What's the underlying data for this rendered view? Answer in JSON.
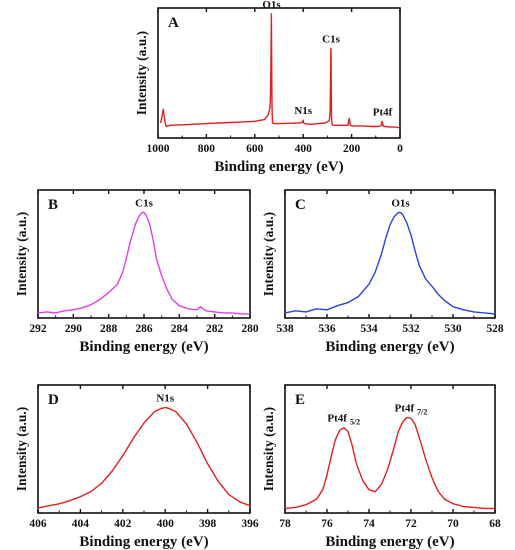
{
  "chart_data": [
    {
      "panel": "A",
      "type": "line",
      "color": "#e02020",
      "xlabel": "Binding energy (eV)",
      "ylabel": "Intensity (a.u.)",
      "xlim": [
        1000,
        0
      ],
      "x_ticks": [
        1000,
        800,
        600,
        400,
        200,
        0
      ],
      "annotations": [
        {
          "text": "O1s",
          "x": 531
        },
        {
          "text": "C1s",
          "x": 285
        },
        {
          "text": "N1s",
          "x": 400
        },
        {
          "text": "Pt4f",
          "x": 72
        }
      ],
      "series": [
        {
          "x": [
            990,
            985,
            978,
            972,
            966,
            950,
            900,
            850,
            800,
            750,
            700,
            650,
            600,
            560,
            545,
            540,
            537,
            535,
            533,
            531.5,
            530.5,
            529,
            527,
            525,
            520,
            500,
            460,
            420,
            405,
            401,
            400,
            399,
            396,
            380,
            360,
            340,
            310,
            292,
            289,
            287,
            286,
            285,
            284,
            283,
            281,
            278,
            260,
            240,
            215,
            210,
            205,
            200,
            180,
            150,
            120,
            100,
            90,
            80,
            76,
            74.5,
            73,
            72,
            70,
            66,
            60,
            40,
            20,
            8,
            0
          ],
          "y": [
            0.05,
            0.09,
            0.17,
            0.07,
            0.02,
            0.03,
            0.035,
            0.04,
            0.045,
            0.05,
            0.055,
            0.06,
            0.065,
            0.08,
            0.12,
            0.16,
            0.18,
            0.3,
            0.62,
            1.0,
            0.7,
            0.2,
            0.05,
            0.05,
            0.045,
            0.045,
            0.048,
            0.05,
            0.055,
            0.07,
            0.075,
            0.06,
            0.045,
            0.04,
            0.04,
            0.045,
            0.05,
            0.07,
            0.15,
            0.4,
            0.7,
            0.68,
            0.3,
            0.1,
            0.04,
            0.03,
            0.03,
            0.03,
            0.03,
            0.09,
            0.03,
            0.025,
            0.025,
            0.025,
            0.02,
            0.02,
            0.02,
            0.025,
            0.04,
            0.065,
            0.04,
            0.055,
            0.025,
            0.02,
            0.02,
            0.015,
            0.015,
            0.01,
            0.01
          ]
        }
      ]
    },
    {
      "panel": "B",
      "type": "line",
      "color": "#e040e0",
      "xlabel": "Binding energy (eV)",
      "ylabel": "Intensity (a.u.)",
      "xlim": [
        292,
        280
      ],
      "x_ticks": [
        292,
        290,
        288,
        286,
        284,
        282,
        280
      ],
      "annotations": [
        {
          "text": "C1s",
          "x": 286.0
        }
      ],
      "series": [
        {
          "x": [
            292,
            291.5,
            291,
            290.5,
            290,
            289.5,
            289,
            288.5,
            288,
            287.5,
            287.2,
            287,
            286.8,
            286.5,
            286.3,
            286.1,
            286.0,
            285.9,
            285.7,
            285.5,
            285.3,
            285,
            284.7,
            284.4,
            284,
            283.5,
            283,
            282.8,
            282.5,
            282,
            281.5,
            281,
            280.5,
            280
          ],
          "y": [
            0.02,
            0.03,
            0.02,
            0.04,
            0.05,
            0.07,
            0.1,
            0.15,
            0.22,
            0.3,
            0.42,
            0.55,
            0.7,
            0.88,
            0.96,
            1.0,
            1.0,
            0.98,
            0.9,
            0.75,
            0.55,
            0.38,
            0.25,
            0.15,
            0.09,
            0.06,
            0.05,
            0.08,
            0.04,
            0.03,
            0.02,
            0.02,
            0.01,
            0.01
          ]
        }
      ]
    },
    {
      "panel": "C",
      "type": "line",
      "color": "#2a40e8",
      "xlabel": "Binding energy (eV)",
      "ylabel": "Intensity (a.u.)",
      "xlim": [
        538,
        528
      ],
      "x_ticks": [
        538,
        536,
        534,
        532,
        530,
        528
      ],
      "annotations": [
        {
          "text": "O1s",
          "x": 532.5
        }
      ],
      "series": [
        {
          "x": [
            538,
            537.5,
            537,
            536.5,
            536,
            535.5,
            535,
            534.5,
            534,
            533.7,
            533.4,
            533.2,
            533,
            532.8,
            532.6,
            532.5,
            532.4,
            532.2,
            532,
            531.8,
            531.6,
            531.3,
            531,
            530.7,
            530.4,
            530,
            529.5,
            529,
            528.5,
            528
          ],
          "y": [
            0.02,
            0.04,
            0.03,
            0.06,
            0.05,
            0.09,
            0.12,
            0.18,
            0.3,
            0.42,
            0.6,
            0.75,
            0.88,
            0.96,
            1.0,
            1.0,
            0.98,
            0.9,
            0.78,
            0.62,
            0.48,
            0.35,
            0.28,
            0.2,
            0.14,
            0.08,
            0.05,
            0.03,
            0.02,
            0.01
          ]
        }
      ]
    },
    {
      "panel": "D",
      "type": "line",
      "color": "#e02020",
      "xlabel": "Binding energy (eV)",
      "ylabel": "Intensity (a.u.)",
      "xlim": [
        406,
        396
      ],
      "x_ticks": [
        406,
        404,
        402,
        400,
        398,
        396
      ],
      "annotations": [
        {
          "text": "N1s",
          "x": 400.0
        }
      ],
      "series": [
        {
          "x": [
            406,
            405.5,
            405,
            404.5,
            404,
            403.5,
            403,
            402.5,
            402,
            401.5,
            401,
            400.5,
            400.2,
            400,
            399.8,
            399.5,
            399,
            398.5,
            398,
            397.5,
            397,
            396.5,
            396
          ],
          "y": [
            0.02,
            0.04,
            0.06,
            0.09,
            0.13,
            0.18,
            0.26,
            0.38,
            0.53,
            0.7,
            0.85,
            0.96,
            0.99,
            1.0,
            0.99,
            0.96,
            0.84,
            0.66,
            0.45,
            0.28,
            0.15,
            0.08,
            0.04
          ]
        }
      ]
    },
    {
      "panel": "E",
      "type": "line",
      "color": "#e02020",
      "xlabel": "Binding energy (eV)",
      "ylabel": "Intensity (a.u.)",
      "xlim": [
        78,
        68
      ],
      "x_ticks": [
        78,
        76,
        74,
        72,
        70,
        68
      ],
      "annotations": [
        {
          "text": "Pt4f",
          "sub": "5/2",
          "x": 75.2
        },
        {
          "text": "Pt4f",
          "sub": "7/2",
          "x": 72.0
        }
      ],
      "series": [
        {
          "x": [
            78,
            77.5,
            77,
            76.5,
            76.2,
            76,
            75.8,
            75.6,
            75.4,
            75.2,
            75.0,
            74.8,
            74.6,
            74.3,
            74,
            73.7,
            73.4,
            73.1,
            72.8,
            72.6,
            72.4,
            72.2,
            72.0,
            71.8,
            71.6,
            71.3,
            71,
            70.7,
            70.4,
            70,
            69.5,
            69,
            68.5,
            68
          ],
          "y": [
            0.02,
            0.03,
            0.06,
            0.12,
            0.22,
            0.38,
            0.58,
            0.76,
            0.86,
            0.89,
            0.85,
            0.7,
            0.5,
            0.32,
            0.22,
            0.2,
            0.28,
            0.45,
            0.68,
            0.85,
            0.95,
            1.0,
            0.99,
            0.92,
            0.78,
            0.55,
            0.35,
            0.2,
            0.12,
            0.07,
            0.04,
            0.03,
            0.02,
            0.02
          ]
        }
      ]
    }
  ]
}
